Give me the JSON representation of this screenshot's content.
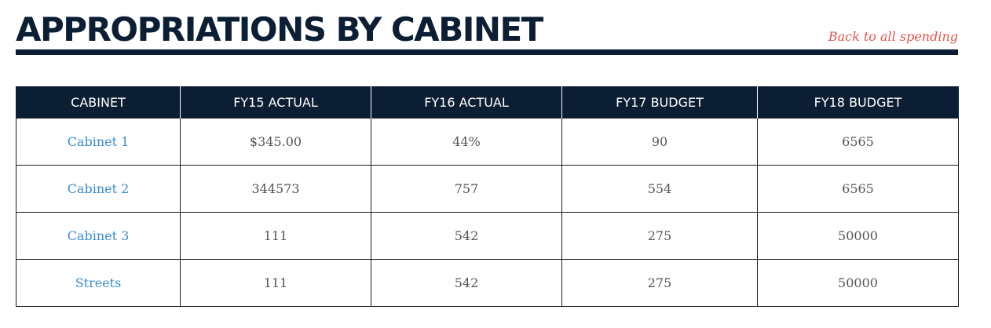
{
  "header": {
    "title": "APPROPRIATIONS BY CABINET",
    "back_link": "Back to all spending"
  },
  "table": {
    "columns": [
      "CABINET",
      "FY15 ACTUAL",
      "FY16 ACTUAL",
      "FY17 BUDGET",
      "FY18 BUDGET"
    ],
    "rows": [
      {
        "cabinet": "Cabinet 1",
        "fy15": "$345.00",
        "fy16": "44%",
        "fy17": "90",
        "fy18": "6565"
      },
      {
        "cabinet": "Cabinet 2",
        "fy15": "344573",
        "fy16": "757",
        "fy17": "554",
        "fy18": "6565"
      },
      {
        "cabinet": "Cabinet 3",
        "fy15": "111",
        "fy16": "542",
        "fy17": "275",
        "fy18": "50000"
      },
      {
        "cabinet": "Streets",
        "fy15": "111",
        "fy16": "542",
        "fy17": "275",
        "fy18": "50000"
      }
    ]
  },
  "colors": {
    "navy": "#0b1e33",
    "link_blue": "#3a8bd0",
    "accent_red": "#e0524a"
  }
}
